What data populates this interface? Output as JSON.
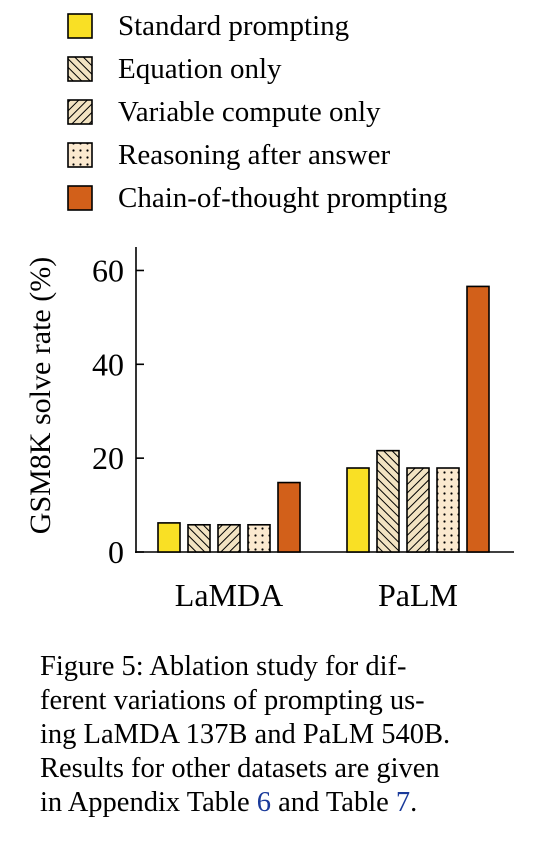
{
  "chart_data": {
    "type": "bar",
    "categories": [
      "LaMDA",
      "PaLM"
    ],
    "ylabel": "GSM8K solve rate (%)",
    "xlabel": "",
    "ylim": [
      0,
      65
    ],
    "yticks": [
      0,
      20,
      40,
      60
    ],
    "grid": false,
    "legend_position": "top",
    "series": [
      {
        "name": "Standard prompting",
        "values": [
          6.2,
          17.9
        ],
        "color": "#f9e025",
        "pattern": "solid"
      },
      {
        "name": "Equation only",
        "values": [
          5.8,
          21.6
        ],
        "color": "#f2e3c2",
        "pattern": "crosshatch-backslash"
      },
      {
        "name": "Variable compute only",
        "values": [
          5.8,
          17.9
        ],
        "color": "#f2e3c2",
        "pattern": "hatch-slash"
      },
      {
        "name": "Reasoning after answer",
        "values": [
          5.8,
          17.9
        ],
        "color": "#fbe9cf",
        "pattern": "dots"
      },
      {
        "name": "Chain-of-thought prompting",
        "values": [
          14.8,
          56.6
        ],
        "color": "#d2601a",
        "pattern": "solid"
      }
    ]
  },
  "caption": {
    "lines": [
      "Figure 5:   Ablation study for dif-",
      "ferent variations of prompting us-",
      "ing LaMDA 137B and PaLM 540B.",
      "Results for other datasets are given"
    ],
    "last_prefix": "in Appendix Table ",
    "ref1": "6",
    "last_mid": " and Table ",
    "ref2": "7",
    "last_suffix": "."
  }
}
